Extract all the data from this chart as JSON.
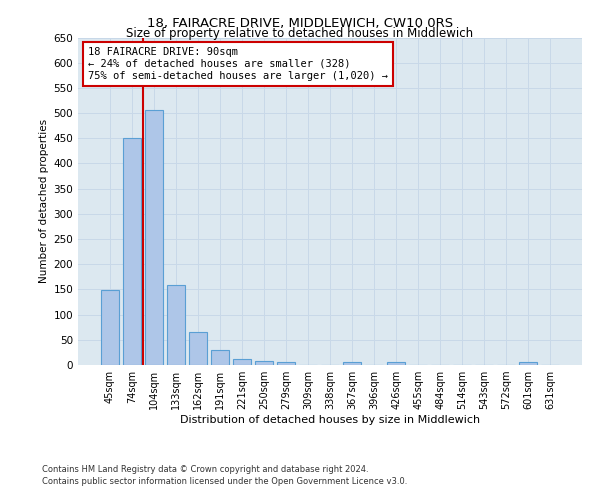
{
  "title": "18, FAIRACRE DRIVE, MIDDLEWICH, CW10 0RS",
  "subtitle": "Size of property relative to detached houses in Middlewich",
  "xlabel": "Distribution of detached houses by size in Middlewich",
  "ylabel": "Number of detached properties",
  "categories": [
    "45sqm",
    "74sqm",
    "104sqm",
    "133sqm",
    "162sqm",
    "191sqm",
    "221sqm",
    "250sqm",
    "279sqm",
    "309sqm",
    "338sqm",
    "367sqm",
    "396sqm",
    "426sqm",
    "455sqm",
    "484sqm",
    "514sqm",
    "543sqm",
    "572sqm",
    "601sqm",
    "631sqm"
  ],
  "values": [
    148,
    450,
    507,
    159,
    66,
    30,
    12,
    7,
    5,
    0,
    0,
    5,
    0,
    6,
    0,
    0,
    0,
    0,
    0,
    5,
    0
  ],
  "bar_color": "#aec6e8",
  "bar_edge_color": "#5a9fd4",
  "vline_color": "#cc0000",
  "annotation_text": "18 FAIRACRE DRIVE: 90sqm\n← 24% of detached houses are smaller (328)\n75% of semi-detached houses are larger (1,020) →",
  "annotation_box_color": "#ffffff",
  "annotation_box_edge_color": "#cc0000",
  "ylim": [
    0,
    650
  ],
  "yticks": [
    0,
    50,
    100,
    150,
    200,
    250,
    300,
    350,
    400,
    450,
    500,
    550,
    600,
    650
  ],
  "grid_color": "#c8d8e8",
  "background_color": "#dce8f0",
  "footer_line1": "Contains HM Land Registry data © Crown copyright and database right 2024.",
  "footer_line2": "Contains public sector information licensed under the Open Government Licence v3.0."
}
